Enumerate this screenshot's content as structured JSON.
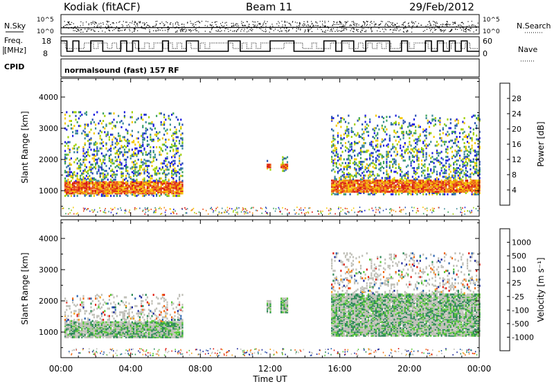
{
  "header": {
    "station": "Kodiak (fitACF)",
    "beam": "Beam 11",
    "date": "29/Feb/2012"
  },
  "summary_panels": {
    "nsky_label": "N.Sky",
    "nsearch_label": "N.Search",
    "nsky_ticks": [
      "10^5",
      "10^0"
    ],
    "freq_label_1": "Freq.",
    "freq_label_2": "[MHz]",
    "freq_ticks": [
      "18",
      "8"
    ],
    "nave_label": "Nave",
    "nave_ticks": [
      "60",
      "0"
    ],
    "cpid_label": "CPID",
    "cpid_value": "normalsound (fast) 157 RF"
  },
  "chart_data": [
    {
      "type": "heatmap",
      "name": "power",
      "xlabel": "Time UT",
      "ylabel": "Slant Range [km]",
      "colorbar_label": "Power [dB]",
      "x_ticks": [
        "00:00",
        "04:00",
        "08:00",
        "12:00",
        "16:00",
        "20:00",
        "00:00"
      ],
      "y_ticks": [
        1000,
        2000,
        3000,
        4000
      ],
      "xlim_hours": [
        0,
        24
      ],
      "ylim_km": [
        180,
        4600
      ],
      "colorbar_ticks": [
        4,
        8,
        12,
        16,
        20,
        24,
        28
      ],
      "colorbar_range": [
        0,
        32
      ],
      "colorscale": [
        "#1e1ee0",
        "#2850b4",
        "#3c8a9a",
        "#3ca25a",
        "#a0d000",
        "#f5c800",
        "#f08c14",
        "#e8501e",
        "#d81c14"
      ],
      "echo_regions": [
        {
          "t0": 0.2,
          "t1": 7.0,
          "r_low": 800,
          "r_high": 3500,
          "band_low": 850,
          "band_high": 1250
        },
        {
          "t0": 11.8,
          "t1": 12.0,
          "r_low": 1600,
          "r_high": 2000,
          "band_low": 1650,
          "band_high": 1800
        },
        {
          "t0": 12.6,
          "t1": 13.0,
          "r_low": 1600,
          "r_high": 2050,
          "band_low": 1650,
          "band_high": 1800
        },
        {
          "t0": 15.5,
          "t1": 24.0,
          "r_low": 850,
          "r_high": 3400,
          "band_low": 900,
          "band_high": 1300
        }
      ]
    },
    {
      "type": "heatmap",
      "name": "velocity",
      "xlabel": "Time UT",
      "ylabel": "Slant Range [km]",
      "colorbar_label": "Velocity [m s⁻¹]",
      "x_ticks": [
        "00:00",
        "04:00",
        "08:00",
        "12:00",
        "16:00",
        "20:00",
        "00:00"
      ],
      "y_ticks": [
        1000,
        2000,
        3000,
        4000
      ],
      "xlim_hours": [
        0,
        24
      ],
      "ylim_km": [
        180,
        4600
      ],
      "colorbar_ticks": [
        "1000",
        "500",
        "100",
        "25",
        "-25",
        "-100",
        "-500",
        "-1000"
      ],
      "colorscale": [
        "#1e2a9c",
        "#2e66b0",
        "#2f8a58",
        "#58c838",
        "#c0c0b8",
        "#c0c0b8",
        "#f0a020",
        "#f06a14",
        "#e02418"
      ],
      "echo_regions": [
        {
          "t0": 0.2,
          "t1": 7.0,
          "r_low": 800,
          "r_high": 2200,
          "band_low": 800,
          "band_high": 1300
        },
        {
          "t0": 11.8,
          "t1": 12.0,
          "r_low": 1600,
          "r_high": 2000,
          "band_low": 1600,
          "band_high": 2000
        },
        {
          "t0": 12.6,
          "t1": 13.0,
          "r_low": 1600,
          "r_high": 2050,
          "band_low": 1600,
          "band_high": 2050
        },
        {
          "t0": 15.5,
          "t1": 24.0,
          "r_low": 850,
          "r_high": 3500,
          "band_low": 850,
          "band_high": 2200
        }
      ]
    }
  ]
}
